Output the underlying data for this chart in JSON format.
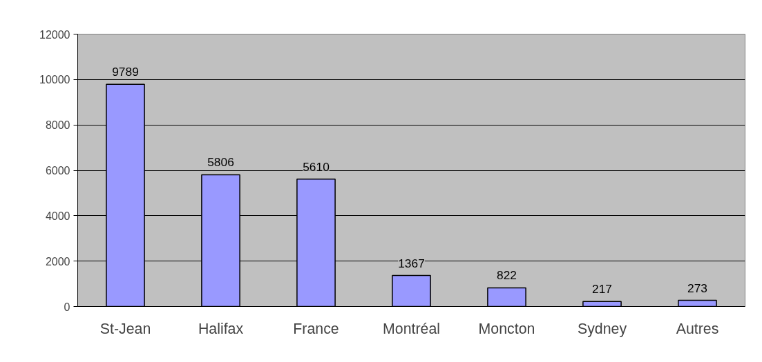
{
  "chart_data": {
    "type": "bar",
    "categories": [
      "St-Jean",
      "Halifax",
      "France",
      "Montréal",
      "Moncton",
      "Sydney",
      "Autres"
    ],
    "values": [
      9789,
      5806,
      5610,
      1367,
      822,
      217,
      273
    ],
    "color": "#9999ff",
    "ylim": [
      0,
      12000
    ],
    "yticks": [
      0,
      2000,
      4000,
      6000,
      8000,
      10000,
      12000
    ],
    "grid": "y",
    "data_labels": true
  }
}
